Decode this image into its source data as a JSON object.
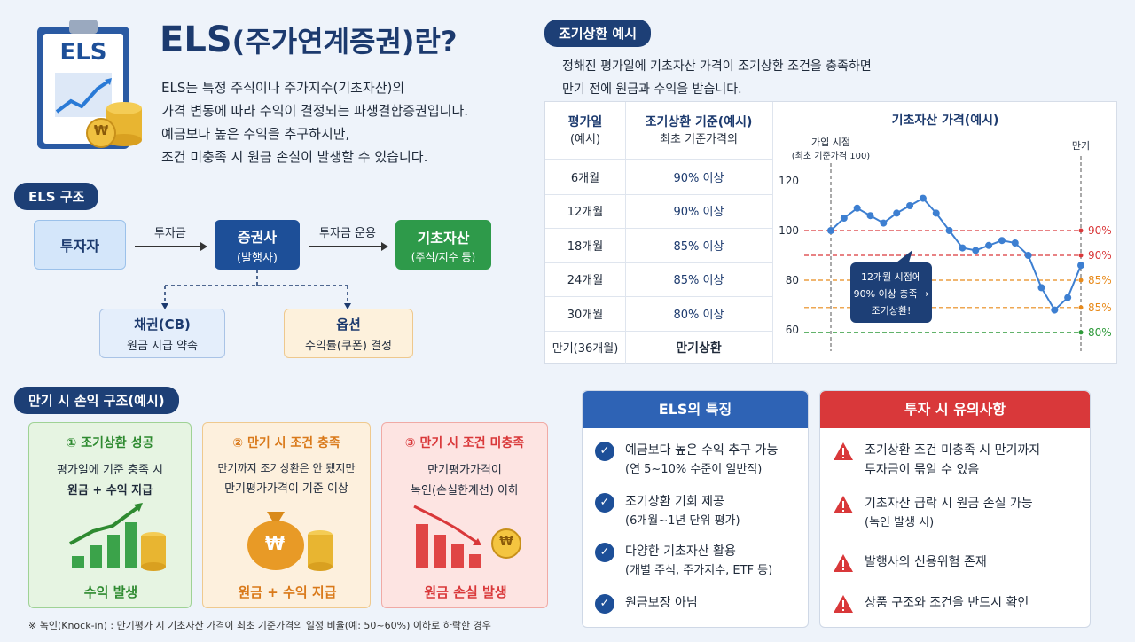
{
  "header": {
    "clipboard_label": "ELS",
    "title_main": "ELS",
    "title_rest": "(주가연계증권)란?",
    "desc": [
      "ELS는 특정 주식이나 주가지수(기초자산)의",
      "가격 변동에 따라 수익이 결정되는 파생결합증권입니다.",
      "예금보다 높은 수익을 추구하지만,",
      "조건 미충족 시 원금 손실이 발생할 수 있습니다."
    ]
  },
  "structure": {
    "pill": "ELS 구조",
    "investor": "투자자",
    "arrow1": "투자금",
    "issuer_title": "증권사",
    "issuer_sub": "(발행사)",
    "arrow2": "투자금 운용",
    "asset_title": "기초자산",
    "asset_sub": "(주식/지수 등)",
    "bond_title": "채권(CB)",
    "bond_sub": "원금 지급 약속",
    "option_title": "옵션",
    "option_sub": "수익률(쿠폰) 결정"
  },
  "early": {
    "pill": "조기상환 예시",
    "desc": [
      "정해진 평가일에 기초자산 가격이 조기상환 조건을 충족하면",
      "만기 전에 원금과 수익을 받습니다."
    ],
    "col1_h1": "평가일",
    "col1_h2": "(예시)",
    "col2_h1": "조기상환 기준(예시)",
    "col2_h2": "최초 기준가격의",
    "col3_h": "기초자산 가격(예시)",
    "rows": [
      {
        "date": "6개월",
        "cond": "90% 이상"
      },
      {
        "date": "12개월",
        "cond": "90% 이상"
      },
      {
        "date": "18개월",
        "cond": "85% 이상"
      },
      {
        "date": "24개월",
        "cond": "85% 이상"
      },
      {
        "date": "30개월",
        "cond": "80% 이상"
      },
      {
        "date": "만기(36개월)",
        "cond": "만기상환"
      }
    ]
  },
  "chart_data": {
    "type": "line",
    "title": "기초자산 가격(예시)",
    "start_label_1": "가입 시점",
    "start_label_2": "(최초 기준가격 100)",
    "end_label": "만기",
    "ylim": [
      55,
      125
    ],
    "yticks": [
      "120",
      "100",
      "80",
      "60"
    ],
    "ytick_values": [
      120,
      100,
      80,
      60
    ],
    "points": [
      100,
      105,
      109,
      106,
      103,
      107,
      110,
      113,
      107,
      100,
      93,
      92,
      94,
      96,
      95,
      90,
      77,
      68,
      73,
      86
    ],
    "thresholds": [
      {
        "value": 100,
        "label": "90%",
        "color": "#d9383a"
      },
      {
        "value": 90,
        "label": "90%",
        "color": "#d9383a"
      },
      {
        "value": 80,
        "label": "85%",
        "color": "#e88a1a"
      },
      {
        "value": 69,
        "label": "85%",
        "color": "#e88a1a"
      },
      {
        "value": 59,
        "label": "80%",
        "color": "#2e9a3a"
      }
    ],
    "callout": [
      "12개월 시점에",
      "90% 이상 충족 →",
      "조기상환!"
    ]
  },
  "payoff": {
    "pill": "만기 시 손익 구조(예시)",
    "cards": [
      {
        "title": "① 조기상환 성공",
        "l1": "평가일에 기준 충족 시",
        "l2": "원금 + 수익 지급",
        "result": "수익 발생"
      },
      {
        "title": "② 만기 시 조건 충족",
        "l1": "만기까지 조기상환은 안 됐지만",
        "l2": "만기평가가격이 기준 이상",
        "result": "원금 + 수익 지급"
      },
      {
        "title": "③ 만기 시 조건 미충족",
        "l1": "만기평가가격이",
        "l2": "녹인(손실한계선) 이하",
        "result": "원금 손실 발생"
      }
    ],
    "footnote": "※ 녹인(Knock-in) : 만기평가 시 기초자산 가격이 최초 기준가격의 일정 비율(예: 50~60%) 이하로 하락한 경우",
    "won": "₩"
  },
  "features": {
    "title": "ELS의 특징",
    "items": [
      {
        "l1": "예금보다 높은 수익 추구 가능",
        "l2": "(연 5~10% 수준이 일반적)"
      },
      {
        "l1": "조기상환 기회 제공",
        "l2": "(6개월~1년 단위 평가)"
      },
      {
        "l1": "다양한 기초자산 활용",
        "l2": "(개별 주식, 주가지수, ETF 등)"
      },
      {
        "l1": "원금보장 아님",
        "l2": ""
      }
    ]
  },
  "cautions": {
    "title": "투자 시 유의사항",
    "items": [
      {
        "l1": "조기상환 조건 미충족 시 만기까지",
        "l2": "투자금이 묶일 수 있음"
      },
      {
        "l1": "기초자산 급락 시 원금 손실 가능",
        "l2": "(녹인 발생 시)"
      },
      {
        "l1": "발행사의 신용위험 존재",
        "l2": ""
      },
      {
        "l1": "상품 구조와 조건을 반드시 확인",
        "l2": ""
      }
    ]
  },
  "colors": {
    "navy": "#1d3f76",
    "red": "#d9383a",
    "green": "#2e9a3a",
    "orange": "#e88a1a",
    "blue_line": "#3d7fd1"
  }
}
